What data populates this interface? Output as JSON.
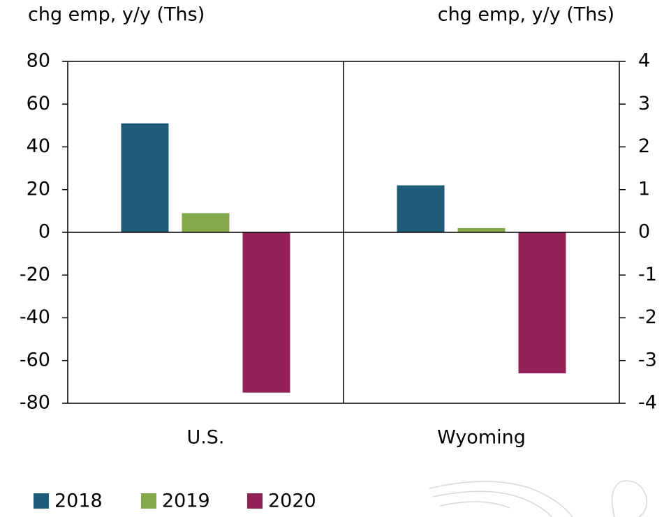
{
  "chart_data": {
    "type": "bar",
    "ylabel": "chg emp, y/y (Ths)",
    "y2label": "chg emp, y/y (Ths)",
    "categories": [
      "U.S.",
      "Wyoming"
    ],
    "category_axes": [
      "y",
      "y2"
    ],
    "series": [
      {
        "name": "2018",
        "color": "#1f5c7a",
        "values": [
          51,
          1.1
        ]
      },
      {
        "name": "2019",
        "color": "#84a94a",
        "values": [
          9,
          0.1
        ]
      },
      {
        "name": "2020",
        "color": "#932256",
        "values": [
          -75,
          -3.3
        ]
      }
    ],
    "ylim": [
      -80,
      80
    ],
    "yticks": [
      -80,
      -60,
      -40,
      -20,
      0,
      20,
      40,
      60,
      80
    ],
    "y2lim": [
      -4,
      4
    ],
    "y2ticks": [
      -4,
      -3,
      -2,
      -1,
      0,
      1,
      2,
      3,
      4
    ],
    "legend": "bottom-left"
  }
}
